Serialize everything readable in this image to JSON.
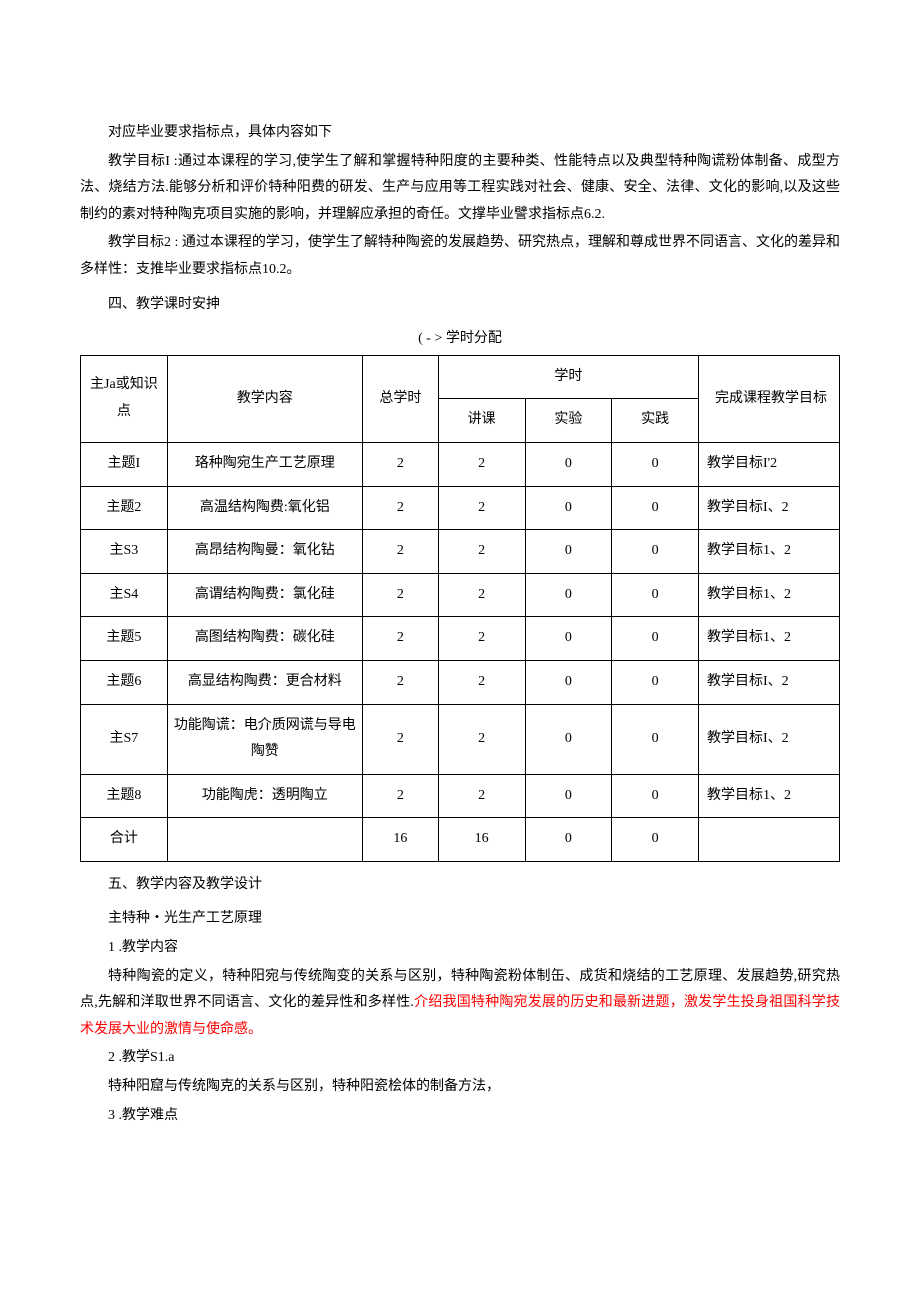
{
  "paragraphs": {
    "p1": "对应毕业要求指标点，具体内容如下",
    "p2": "教学目标I :通过本课程的学习,使学生了解和掌握特种阳度的主要种类、性能特点以及典型特种陶谎粉体制备、成型方法、烧结方法.能够分析和评价特种阳费的研发、生产与应用等工程实践对社会、健康、安全、法律、文化的影响,以及这些制约的素对特种陶克项目实施的影响，并理解应承担的奇任。文撑毕业譬求指标点6.2.",
    "p3": "教学目标2 : 通过本课程的学习，使学生了解特种陶瓷的发展趋势、研究热点，理解和尊成世界不同语言、文化的差异和多样性：支推毕业要求指标点10.2。",
    "p4": "四、教学课时安抻",
    "tableCaption": "( - > 学时分配",
    "p5": "五、教学内容及教学设计",
    "p6": "主特种・光生产工艺原理",
    "p7": "1 .教学内容",
    "p8a": "特种陶瓷的定义，特种阳宛与传统陶变的关系与区别，特种陶瓷粉体制缶、成货和烧结的工艺原理、发展趋势,研究热点,先解和洋取世界不同语言、文化的差异性和多样性.",
    "p8b": "介绍我国特种陶宛发展的历史和最新进题，激发学生投身祖国科学技术发展大业的激情与使命感。",
    "p9": "2 .教学S1.a",
    "p10": "特种阳窟与传统陶克的关系与区别，特种阳瓷桧体的制备方法，",
    "p11": "3 .教学难点"
  },
  "table": {
    "headers": {
      "topic": "主Ja或知识点",
      "content": "教学内容",
      "totalHours": "总学时",
      "hours": "学时",
      "lecture": "讲课",
      "experiment": "实验",
      "practice": "实践",
      "goal": "完成课程教学目标"
    },
    "rows": [
      {
        "topic": "主题I",
        "content": "珞种陶宛生产工艺原理",
        "total": "2",
        "lecture": "2",
        "exp": "0",
        "prac": "0",
        "goal": "教学目标I'2"
      },
      {
        "topic": "主题2",
        "content": "高温结构陶费:氧化铝",
        "total": "2",
        "lecture": "2",
        "exp": "0",
        "prac": "0",
        "goal": "教学目标I、2"
      },
      {
        "topic": "主S3",
        "content": "高昂结构陶曼：氧化钻",
        "total": "2",
        "lecture": "2",
        "exp": "0",
        "prac": "0",
        "goal": "教学目标1、2"
      },
      {
        "topic": "主S4",
        "content": "高谓结构陶费：氯化硅",
        "total": "2",
        "lecture": "2",
        "exp": "0",
        "prac": "0",
        "goal": "教学目标1、2"
      },
      {
        "topic": "主题5",
        "content": "高图结构陶费：碳化硅",
        "total": "2",
        "lecture": "2",
        "exp": "0",
        "prac": "0",
        "goal": "教学目标1、2"
      },
      {
        "topic": "主题6",
        "content": "高显结构陶费：更合材料",
        "total": "2",
        "lecture": "2",
        "exp": "0",
        "prac": "0",
        "goal": "教学目标I、2"
      },
      {
        "topic": "主S7",
        "content": "功能陶谎：电介质网谎与导电陶赞",
        "total": "2",
        "lecture": "2",
        "exp": "0",
        "prac": "0",
        "goal": "教学目标I、2"
      },
      {
        "topic": "主题8",
        "content": "功能陶虎：透明陶立",
        "total": "2",
        "lecture": "2",
        "exp": "0",
        "prac": "0",
        "goal": "教学目标1、2"
      },
      {
        "topic": "合计",
        "content": "",
        "total": "16",
        "lecture": "16",
        "exp": "0",
        "prac": "0",
        "goal": ""
      }
    ]
  }
}
